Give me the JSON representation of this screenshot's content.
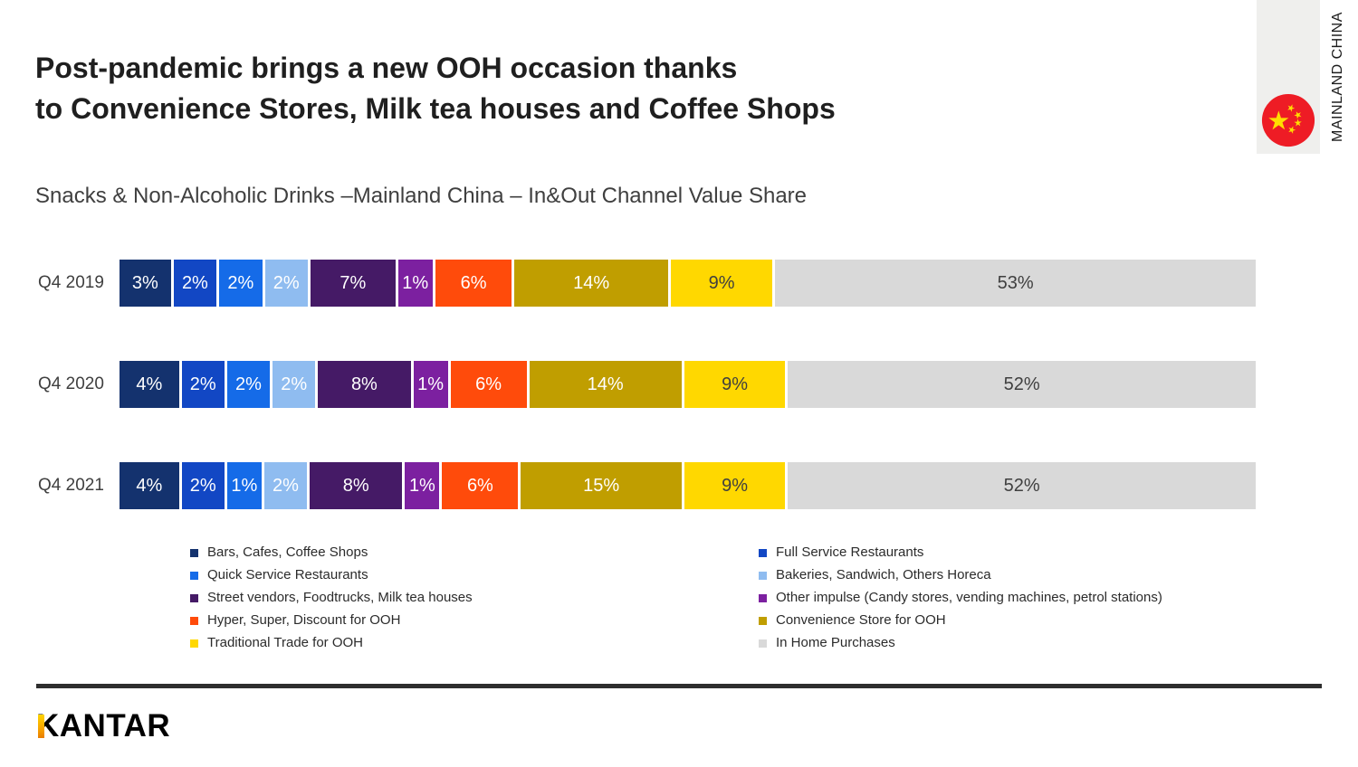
{
  "header": {
    "title_lines": [
      "Post-pandemic brings a new OOH occasion thanks",
      "to Convenience Stores, Milk tea houses and Coffee Shops"
    ],
    "subtitle": "Snacks & Non-Alcoholic Drinks –Mainland China – In&Out Channel Value Share",
    "region_label": "MAINLAND CHINA",
    "flag_colors": {
      "panel": "#EFEFED",
      "circle": "#EE1C25",
      "stars": "#FFDE00"
    }
  },
  "chart_data": {
    "type": "bar",
    "variant": "stacked-horizontal",
    "value_suffix": "%",
    "xlim": [
      0,
      100
    ],
    "legend_position": "bottom-two-columns",
    "categories": [
      "Q4 2019",
      "Q4 2020",
      "Q4 2021"
    ],
    "series": [
      {
        "name": "Bars, Cafes, Coffee Shops",
        "color": "#14326E",
        "values": [
          3,
          4,
          4
        ]
      },
      {
        "name": "Full Service Restaurants",
        "color": "#1247C4",
        "values": [
          2,
          2,
          2
        ]
      },
      {
        "name": "Quick Service Restaurants",
        "color": "#156BE8",
        "values": [
          2,
          2,
          1
        ]
      },
      {
        "name": "Bakeries, Sandwich, Others Horeca",
        "color": "#8FBCF0",
        "values": [
          2,
          2,
          2
        ]
      },
      {
        "name": "Street vendors, Foodtrucks, Milk tea houses",
        "color": "#451A66",
        "values": [
          7,
          8,
          8
        ]
      },
      {
        "name": "Other impulse (Candy stores, vending machines, petrol stations)",
        "color": "#7C20A0",
        "values": [
          1,
          1,
          1
        ]
      },
      {
        "name": "Hyper, Super, Discount for OOH",
        "color": "#FF4B0B",
        "values": [
          6,
          6,
          6
        ]
      },
      {
        "name": "Convenience Store for OOH",
        "color": "#C09E00",
        "values": [
          14,
          14,
          15
        ]
      },
      {
        "name": "Traditional Trade for OOH",
        "color": "#FFD800",
        "values": [
          9,
          9,
          9
        ],
        "label_color": "#3f3f3f"
      },
      {
        "name": "In Home Purchases",
        "color": "#D9D9D9",
        "values": [
          53,
          52,
          52
        ],
        "label_color": "#3f3f3f"
      }
    ]
  },
  "footer": {
    "logo_text": "KANTAR",
    "logo_accent_color": "#F7A000"
  }
}
